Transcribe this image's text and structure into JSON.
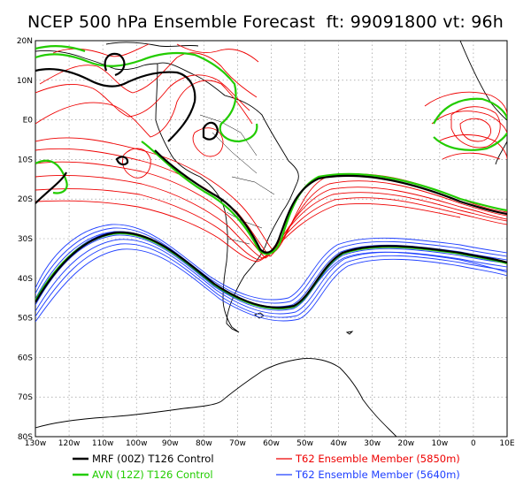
{
  "title": "NCEP 500 hPa Ensemble Forecast  ft: 99091800 vt: 96h",
  "lat_labels": [
    "20N",
    "10N",
    "E0",
    "10S",
    "20S",
    "30S",
    "40S",
    "50S",
    "60S",
    "70S",
    "80S"
  ],
  "lon_labels": [
    "130w",
    "120w",
    "110w",
    "100w",
    "90w",
    "80w",
    "70w",
    "60w",
    "50w",
    "40w",
    "30w",
    "20w",
    "10w",
    "0",
    "10E"
  ],
  "legend": [
    {
      "label": "MRF (00Z) T126 Control",
      "color": "#000000"
    },
    {
      "label": "AVN (12Z) T126 Control",
      "color": "#22cc00"
    },
    {
      "label": "T62 Ensemble Member (5850m)",
      "color": "#ee0000"
    },
    {
      "label": "T62 Ensemble Member (5640m)",
      "color": "#2040ff"
    }
  ],
  "colors": {
    "mrf": "#000000",
    "avn": "#22cc00",
    "red": "#ee0000",
    "blue": "#2040ff",
    "grid": "#888888"
  }
}
